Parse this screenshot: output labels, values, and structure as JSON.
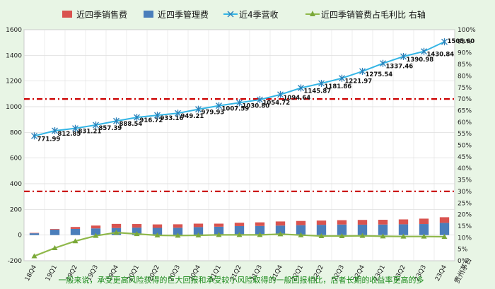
{
  "chart_data": {
    "type": "combo-bar-line",
    "categories": [
      "18Q4",
      "19Q1",
      "19Q2",
      "19Q3",
      "19Q4",
      "20Q1",
      "20Q2",
      "20Q3",
      "20Q4",
      "21Q1",
      "21Q2",
      "21Q3",
      "21Q4",
      "22Q1",
      "22Q2",
      "22Q3",
      "22Q4",
      "23Q1",
      "23Q2",
      "23Q3",
      "23Q4"
    ],
    "legend": [
      "近四季销售费",
      "近四季管理费",
      "近4季营收",
      "近四季销管费占毛利比 右轴"
    ],
    "series": [
      {
        "name": "近四季销售费",
        "type": "bar-stacked",
        "axis": "left",
        "color": "#d9534f",
        "values": [
          3,
          5,
          15,
          22,
          32,
          28,
          27,
          27,
          27,
          24,
          26,
          28,
          32,
          33,
          33,
          34,
          37,
          37,
          38,
          42,
          44
        ]
      },
      {
        "name": "近四季管理费",
        "type": "bar-stacked",
        "axis": "left",
        "color": "#4a7ebb",
        "values": [
          14,
          42,
          48,
          52,
          55,
          58,
          56,
          57,
          62,
          65,
          70,
          71,
          74,
          77,
          80,
          82,
          81,
          82,
          84,
          86,
          95
        ]
      },
      {
        "name": "近4季营收",
        "type": "line",
        "axis": "left",
        "color": "#33b5e5",
        "marker": "star",
        "values": [
          771.99,
          812.85,
          831.21,
          857.39,
          888.54,
          916.72,
          933.16,
          949.21,
          979.93,
          1007.59,
          1030.8,
          1054.72,
          1094.64,
          1145.87,
          1181.86,
          1221.97,
          1275.54,
          1337.46,
          1390.98,
          1430.84,
          1505.6
        ],
        "labels": [
          "771.99",
          "812.85",
          "831.21",
          "857.39",
          "888.54",
          "916.72",
          "933.16",
          "949.21",
          "979.93",
          "1007.59",
          "1030.80",
          "1054.72",
          "1094.64",
          "1145.87",
          "1181.86",
          "1221.97",
          "1275.54",
          "1337.46",
          "1390.98",
          "1430.84",
          "1505.60"
        ]
      },
      {
        "name": "近四季销管费占毛利比 右轴",
        "type": "line",
        "axis": "right",
        "color": "#8fb84a",
        "marker": "triangle",
        "values": [
          2,
          5.5,
          8.5,
          10.8,
          12.2,
          11.6,
          11,
          10.9,
          11,
          11.2,
          11.2,
          11.2,
          11.5,
          11.1,
          10.7,
          10.7,
          10.8,
          10.6,
          10.5,
          10.5,
          10.4
        ]
      }
    ],
    "yleft": {
      "min": -200,
      "max": 1600,
      "ticks": [
        "-200",
        "0",
        "200",
        "400",
        "600",
        "800",
        "1000",
        "1200",
        "1400",
        "1600"
      ]
    },
    "yright": {
      "min": 0,
      "max": 100,
      "ticks": [
        "0%",
        "5%",
        "10%",
        "15%",
        "20%",
        "25%",
        "30%",
        "35%",
        "40%",
        "45%",
        "50%",
        "55%",
        "60%",
        "65%",
        "70%",
        "75%",
        "80%",
        "85%",
        "90%",
        "95%",
        "100%"
      ]
    },
    "reference_lines": [
      {
        "axis": "right",
        "value": 70,
        "color": "#cc0000",
        "style": "dash-dot"
      },
      {
        "axis": "right",
        "value": 30,
        "color": "#cc0000",
        "style": "dash-dot"
      }
    ],
    "grid": true,
    "legend_position": "top"
  },
  "footnote": "一般来说，承受更高风险获得的巨大回报和承受较小风险取得的一般回报相比，后者长期的收益率更高的多",
  "stamp": "贵州茅台"
}
